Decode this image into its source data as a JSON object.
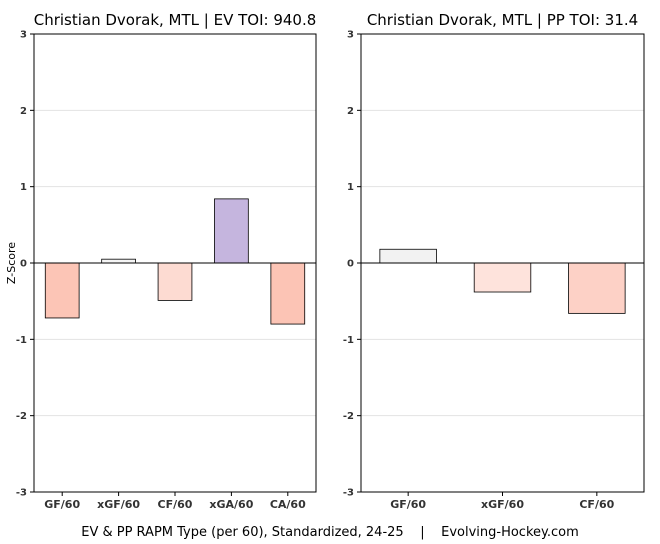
{
  "footer": "EV & PP RAPM Type (per 60), Standardized, 24-25    |    Evolving-Hockey.com",
  "chart_data": [
    {
      "type": "bar",
      "title": "Christian Dvorak, MTL  |  EV TOI: 940.8",
      "ylabel": "Z-Score",
      "ylim": [
        -3,
        3
      ],
      "yticks": [
        -3,
        -2,
        -1,
        0,
        1,
        2,
        3
      ],
      "grid": true,
      "categories": [
        "GF/60",
        "xGF/60",
        "CF/60",
        "xGA/60",
        "CA/60"
      ],
      "values": [
        -0.72,
        0.05,
        -0.49,
        0.84,
        -0.8
      ],
      "colors": [
        "#fcc5b6",
        "#f5f5f5",
        "#fddbd2",
        "#c5b5de",
        "#fcc4b5"
      ]
    },
    {
      "type": "bar",
      "title": "Christian Dvorak, MTL  |  PP TOI: 31.4",
      "ylabel": "",
      "ylim": [
        -3,
        3
      ],
      "yticks": [
        -3,
        -2,
        -1,
        0,
        1,
        2,
        3
      ],
      "grid": true,
      "categories": [
        "GF/60",
        "xGF/60",
        "CF/60"
      ],
      "values": [
        0.18,
        -0.38,
        -0.66
      ],
      "colors": [
        "#f2f2f2",
        "#fee3dc",
        "#fdd1c6"
      ]
    }
  ]
}
